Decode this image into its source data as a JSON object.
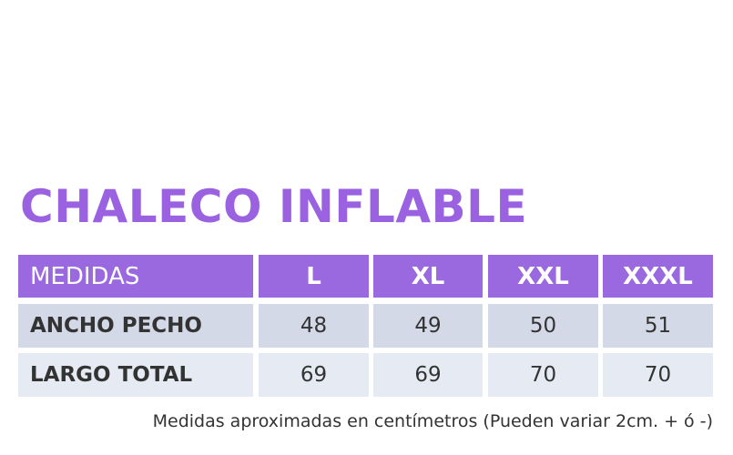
{
  "title": "CHALECO INFLABLE",
  "table": {
    "header": [
      "MEDIDAS",
      "L",
      "XL",
      "XXL",
      "XXXL"
    ],
    "rows": [
      [
        "ANCHO PECHO",
        48,
        49,
        50,
        51
      ],
      [
        "LARGO TOTAL",
        69,
        69,
        70,
        70
      ]
    ]
  },
  "footnote": "Medidas aproximadas en centímetros (Pueden variar 2cm. + ó -)"
}
